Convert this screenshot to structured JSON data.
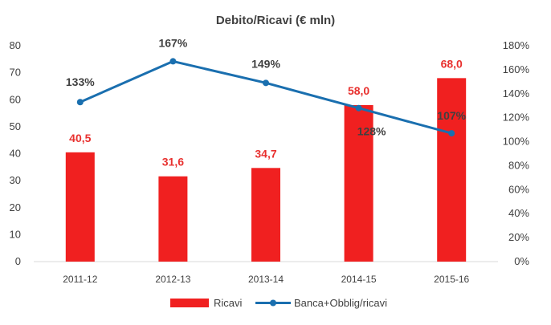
{
  "chart_data": {
    "type": "bar+line",
    "title": "Debito/Ricavi (€ mln)",
    "categories": [
      "2011-12",
      "2012-13",
      "2013-14",
      "2014-15",
      "2015-16"
    ],
    "series": [
      {
        "name": "Ricavi",
        "type": "bar",
        "axis": "left",
        "values": [
          40.5,
          31.6,
          34.7,
          58.0,
          68.0
        ],
        "labels": [
          "40,5",
          "31,6",
          "34,7",
          "58,0",
          "68,0"
        ],
        "color": "#f02020",
        "label_color": "#e8302e"
      },
      {
        "name": "Banca+Obblig/ricavi",
        "type": "line",
        "axis": "right",
        "values": [
          133,
          167,
          149,
          128,
          107
        ],
        "labels": [
          "133%",
          "167%",
          "149%",
          "128%",
          "107%"
        ],
        "color": "#1a6faf",
        "marker": "circle"
      }
    ],
    "y_left": {
      "ylim": [
        0,
        80
      ],
      "ticks": [
        "0",
        "10",
        "20",
        "30",
        "40",
        "50",
        "60",
        "70",
        "80"
      ]
    },
    "y_right": {
      "ylim": [
        0,
        180
      ],
      "ticks": [
        "0%",
        "20%",
        "40%",
        "60%",
        "80%",
        "100%",
        "120%",
        "140%",
        "160%",
        "180%"
      ]
    },
    "grid": false,
    "legend_position": "bottom"
  }
}
